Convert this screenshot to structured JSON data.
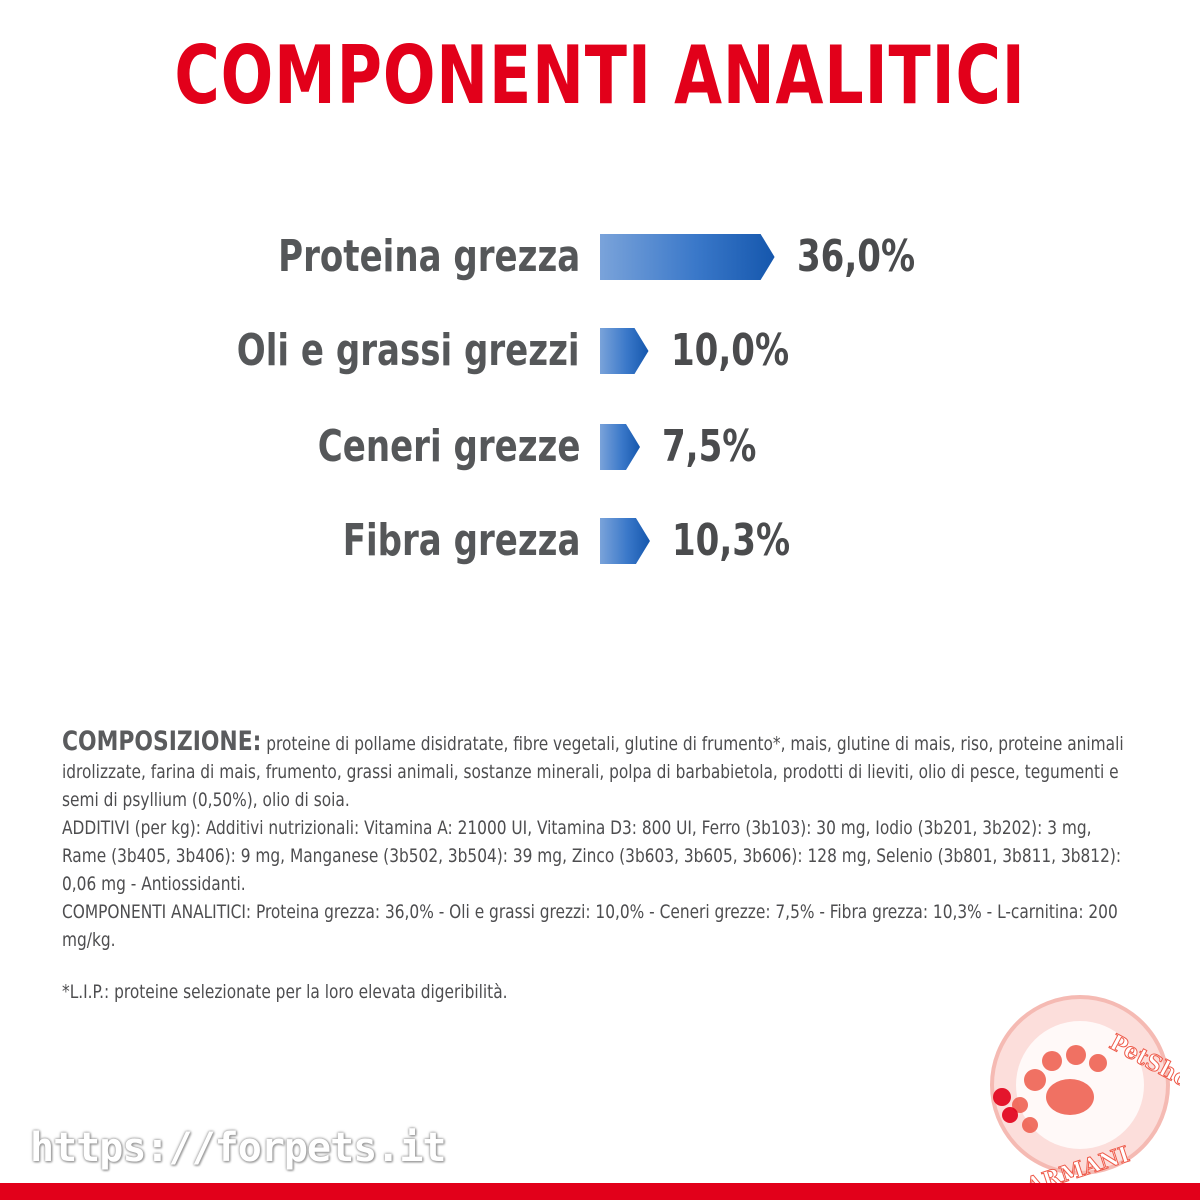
{
  "title": "COMPONENTI ANALITICI",
  "colors": {
    "brand_red": "#e2001a",
    "bar_blue_dark": "#1a5fb4",
    "bar_blue_light": "#6f9bd6",
    "text_gray": "#555759"
  },
  "chart_data": {
    "type": "bar",
    "title": "COMPONENTI ANALITICI",
    "categories": [
      "Proteina grezza",
      "Oli e grassi grezzi",
      "Ceneri grezze",
      "Fibra grezza"
    ],
    "values": [
      36.0,
      10.0,
      7.5,
      10.3
    ],
    "value_labels": [
      "36,0%",
      "10,0%",
      "7,5%",
      "10,3%"
    ],
    "unit": "%",
    "orientation": "horizontal",
    "grid": false
  },
  "composition": {
    "lead": "COMPOSIZIONE:",
    "ingredients": " proteine di pollame disidratate, fibre vegetali, glutine di frumento*, mais, glutine di mais, riso, proteine animali idrolizzate, farina di mais, frumento, grassi animali, sostanze minerali, polpa di barbabietola, prodotti di lieviti, olio di pesce, tegumenti e semi di psyllium (0,50%), olio di soia.",
    "additives": "ADDITIVI (per kg): Additivi nutrizionali: Vitamina A: 21000 UI, Vitamina D3: 800 UI, Ferro (3b103): 30 mg, Iodio (3b201, 3b202): 3 mg, Rame (3b405, 3b406): 9 mg, Manganese (3b502, 3b504): 39 mg, Zinco (3b603, 3b605, 3b606): 128 mg, Selenio (3b801, 3b811, 3b812): 0,06 mg - Antiossidanti.",
    "analytical": "COMPONENTI ANALITICI: Proteina grezza: 36,0% - Oli e grassi grezzi: 10,0% - Ceneri grezze: 7,5% - Fibra grezza: 10,3% - L-carnitina: 200 mg/kg.",
    "footnote": "*L.I.P.: proteine selezionate per la loro elevata digeribilità."
  },
  "watermark": {
    "url": "https://forpets.it",
    "logo_top": "PetShop",
    "logo_bottom": "ARMANI"
  }
}
